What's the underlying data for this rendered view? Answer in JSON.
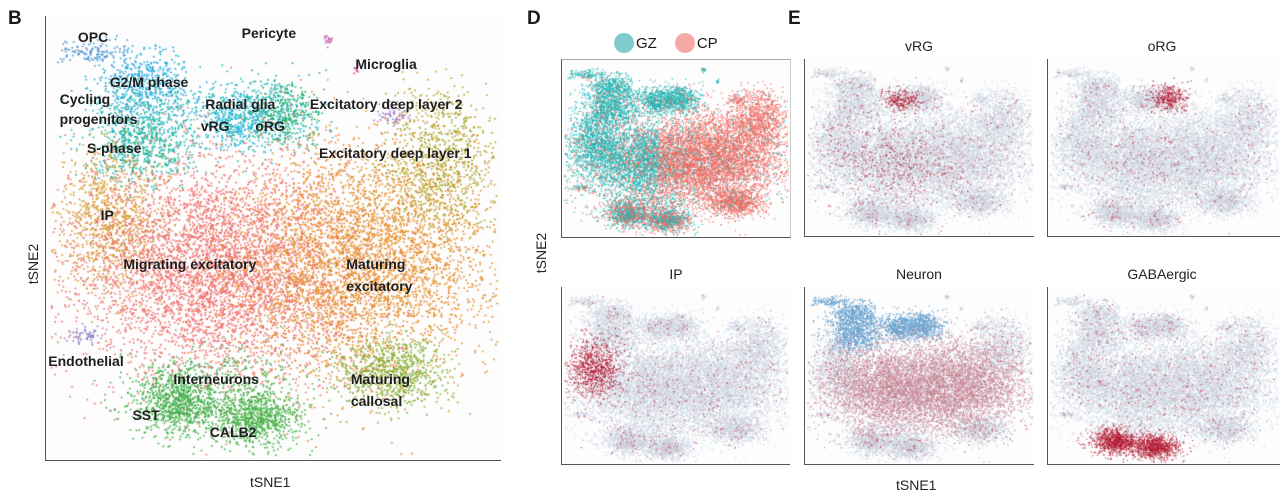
{
  "chart_data": [
    {
      "panel": "B",
      "type": "scatter",
      "title": "",
      "xlabel": "tSNE1",
      "ylabel": "tSNE2",
      "grid": false,
      "xlim": [
        0,
        100
      ],
      "ylim": [
        0,
        100
      ],
      "clusters": [
        {
          "name": "OPC",
          "color": "#4a8fcf",
          "center": [
            10,
            92
          ],
          "spread": [
            4,
            1.5
          ],
          "n": 120
        },
        {
          "name": "G2/M phase",
          "color": "#1ea6dd",
          "center": [
            21,
            85
          ],
          "spread": [
            5,
            4
          ],
          "n": 500
        },
        {
          "name": "Cycling progenitors",
          "color": "#1fb5b0",
          "center": [
            22,
            76
          ],
          "spread": [
            6,
            5
          ],
          "n": 500
        },
        {
          "name": "S-phase",
          "color": "#15b39a",
          "center": [
            21,
            70
          ],
          "spread": [
            5,
            4
          ],
          "n": 400
        },
        {
          "name": "Radial glia",
          "color": "#1fb5c9",
          "center": [
            44,
            78
          ],
          "spread": [
            7,
            4
          ],
          "n": 500
        },
        {
          "name": "vRG",
          "color": "#23b9d6",
          "center": [
            42,
            77
          ],
          "spread": [
            4,
            3
          ],
          "n": 250
        },
        {
          "name": "oRG",
          "color": "#1eab73",
          "center": [
            52,
            78
          ],
          "spread": [
            4,
            4
          ],
          "n": 350
        },
        {
          "name": "Pericyte",
          "color": "#c565b0",
          "center": [
            62,
            95
          ],
          "spread": [
            0.5,
            0.7
          ],
          "n": 20
        },
        {
          "name": "Microglia",
          "color": "#d3499c",
          "center": [
            68,
            88
          ],
          "spread": [
            0.3,
            0.8
          ],
          "n": 10
        },
        {
          "name": "Excitatory deep layer 2",
          "color": "#9e77c8",
          "center": [
            76,
            78
          ],
          "spread": [
            1.5,
            1.5
          ],
          "n": 60
        },
        {
          "name": "Excitatory deep layer 1",
          "color": "#a9a42a",
          "center": [
            87,
            67
          ],
          "spread": [
            6,
            8
          ],
          "n": 900
        },
        {
          "name": "IP",
          "color": "#d49a2b",
          "center": [
            14,
            54
          ],
          "spread": [
            6,
            8
          ],
          "n": 900
        },
        {
          "name": "Migrating excitatory",
          "color": "#ee6e6b",
          "center": [
            38,
            43
          ],
          "spread": [
            16,
            12
          ],
          "n": 5000
        },
        {
          "name": "Maturing excitatory",
          "color": "#e58b24",
          "center": [
            70,
            45
          ],
          "spread": [
            14,
            13
          ],
          "n": 4000
        },
        {
          "name": "Endothelial",
          "color": "#8f82c8",
          "center": [
            8,
            28
          ],
          "spread": [
            2,
            1
          ],
          "n": 60
        },
        {
          "name": "Interneurons",
          "color": "#3fae49",
          "center": [
            38,
            20
          ],
          "spread": [
            10,
            3
          ],
          "n": 200
        },
        {
          "name": "SST",
          "color": "#3fae49",
          "center": [
            29,
            13
          ],
          "spread": [
            5,
            3.5
          ],
          "n": 900
        },
        {
          "name": "CALB2",
          "color": "#45b046",
          "center": [
            46,
            10
          ],
          "spread": [
            5,
            3.5
          ],
          "n": 900
        },
        {
          "name": "Maturing callosal",
          "color": "#84ae34",
          "center": [
            76,
            20
          ],
          "spread": [
            6,
            4
          ],
          "n": 800
        }
      ],
      "annotations": [
        {
          "text": "OPC",
          "at": [
            7,
            97
          ]
        },
        {
          "text": "G2/M phase",
          "at": [
            14,
            87
          ]
        },
        {
          "text": "Cycling",
          "at": [
            3,
            83
          ]
        },
        {
          "text": "progenitors",
          "at": [
            3,
            78.5
          ]
        },
        {
          "text": "S-phase",
          "at": [
            9,
            72
          ]
        },
        {
          "text": "Radial glia",
          "at": [
            35,
            82
          ]
        },
        {
          "text": "vRG",
          "at": [
            34,
            77
          ]
        },
        {
          "text": "oRG",
          "at": [
            46,
            77
          ]
        },
        {
          "text": "Pericyte",
          "at": [
            43,
            98
          ]
        },
        {
          "text": "Microglia",
          "at": [
            68,
            91
          ]
        },
        {
          "text": "Excitatory deep layer 2",
          "at": [
            58,
            82
          ]
        },
        {
          "text": "Excitatory deep layer 1",
          "at": [
            60,
            71
          ]
        },
        {
          "text": "IP",
          "at": [
            12,
            57
          ]
        },
        {
          "text": "Migrating excitatory",
          "at": [
            17,
            46
          ]
        },
        {
          "text": "Maturing",
          "at": [
            66,
            46
          ]
        },
        {
          "text": "excitatory",
          "at": [
            66,
            41
          ]
        },
        {
          "text": "Endothelial",
          "at": [
            0.5,
            24
          ]
        },
        {
          "text": "Interneurons",
          "at": [
            28,
            20
          ]
        },
        {
          "text": "SST",
          "at": [
            19,
            12
          ]
        },
        {
          "text": "CALB2",
          "at": [
            36,
            8
          ]
        },
        {
          "text": "Maturing",
          "at": [
            67,
            20
          ]
        },
        {
          "text": "callosal",
          "at": [
            67,
            15
          ]
        }
      ]
    },
    {
      "panel": "D",
      "type": "scatter",
      "title": "",
      "xlabel": "",
      "ylabel": "tSNE2",
      "legend": [
        {
          "name": "GZ",
          "color": "#20b6b6"
        },
        {
          "name": "CP",
          "color": "#ef6b63"
        }
      ],
      "legend_position": "top"
    },
    {
      "panel": "E",
      "type": "scatter",
      "xlabel": "tSNE1",
      "ylabel": "",
      "colormap": {
        "low": "#2f7fc0",
        "mid": "#d5e2ec",
        "high": "#b2061e"
      },
      "subplots": [
        {
          "title": "vRG",
          "high_regions": [
            "vRG"
          ]
        },
        {
          "title": "oRG",
          "high_regions": [
            "oRG"
          ]
        },
        {
          "title": "IP",
          "high_regions": [
            "IP"
          ]
        },
        {
          "title": "Neuron",
          "high_regions": [
            "Migrating excitatory",
            "Maturing excitatory"
          ]
        },
        {
          "title": "GABAergic",
          "high_regions": [
            "SST",
            "CALB2"
          ]
        }
      ]
    }
  ],
  "labels": {
    "panel_b": "B",
    "panel_d": "D",
    "panel_e": "E",
    "b_xlabel": "tSNE1",
    "b_ylabel": "tSNE2",
    "de_ylabel": "tSNE2",
    "de_xlabel": "tSNE1",
    "legend_gz": "GZ",
    "legend_cp": "CP",
    "e_titles": [
      "vRG",
      "oRG",
      "IP",
      "Neuron",
      "GABAergic"
    ]
  }
}
